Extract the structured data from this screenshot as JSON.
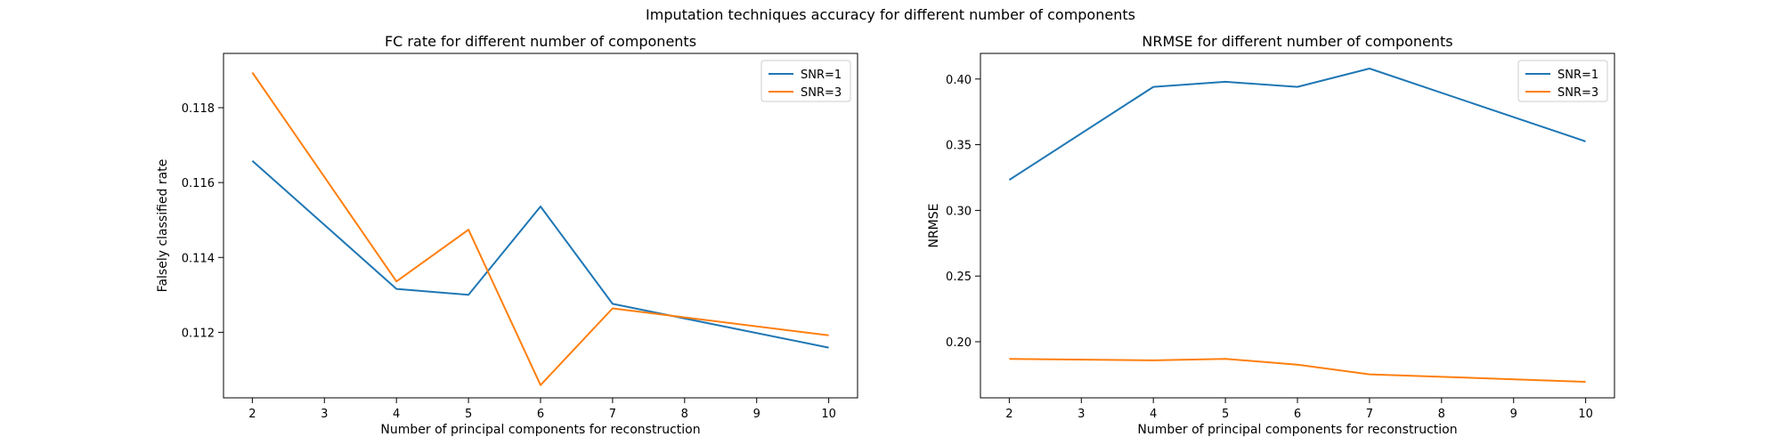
{
  "figure": {
    "suptitle": "Imputation techniques accuracy for different number of components"
  },
  "colors": {
    "snr1": "#1f77b4",
    "snr3": "#ff7f0e"
  },
  "chart_data": [
    {
      "type": "line",
      "title": "FC rate for different number of components",
      "xlabel": "Number of principal components for reconstruction",
      "ylabel": "Falsely classified rate",
      "x": [
        2,
        4,
        5,
        6,
        7,
        10
      ],
      "xlim": [
        1.6,
        10.4
      ],
      "ylim": [
        0.11025,
        0.11945
      ],
      "xticks": [
        2,
        3,
        4,
        5,
        6,
        7,
        8,
        9,
        10
      ],
      "yticks": [
        0.112,
        0.114,
        0.116,
        0.118
      ],
      "ytick_labels": [
        "0.112",
        "0.114",
        "0.116",
        "0.118"
      ],
      "legend_position": "top-right",
      "grid": false,
      "series": [
        {
          "name": "SNR=1",
          "values": [
            0.11658,
            0.11316,
            0.113,
            0.11536,
            0.11276,
            0.11159
          ]
        },
        {
          "name": "SNR=3",
          "values": [
            0.11894,
            0.11336,
            0.11474,
            0.11059,
            0.11264,
            0.11192
          ]
        }
      ]
    },
    {
      "type": "line",
      "title": "NRMSE for different number of components",
      "xlabel": "Number of principal components for reconstruction",
      "ylabel": "NRMSE",
      "x": [
        2,
        4,
        5,
        6,
        7,
        10
      ],
      "xlim": [
        1.6,
        10.4
      ],
      "ylim": [
        0.1573,
        0.4195
      ],
      "xticks": [
        2,
        3,
        4,
        5,
        6,
        7,
        8,
        9,
        10
      ],
      "yticks": [
        0.2,
        0.25,
        0.3,
        0.35,
        0.4
      ],
      "ytick_labels": [
        "0.20",
        "0.25",
        "0.30",
        "0.35",
        "0.40"
      ],
      "legend_position": "top-right",
      "grid": false,
      "series": [
        {
          "name": "SNR=1",
          "values": [
            0.3232,
            0.394,
            0.3979,
            0.394,
            0.408,
            0.3525
          ]
        },
        {
          "name": "SNR=3",
          "values": [
            0.1869,
            0.1858,
            0.187,
            0.1825,
            0.1752,
            0.1695
          ]
        }
      ]
    }
  ]
}
